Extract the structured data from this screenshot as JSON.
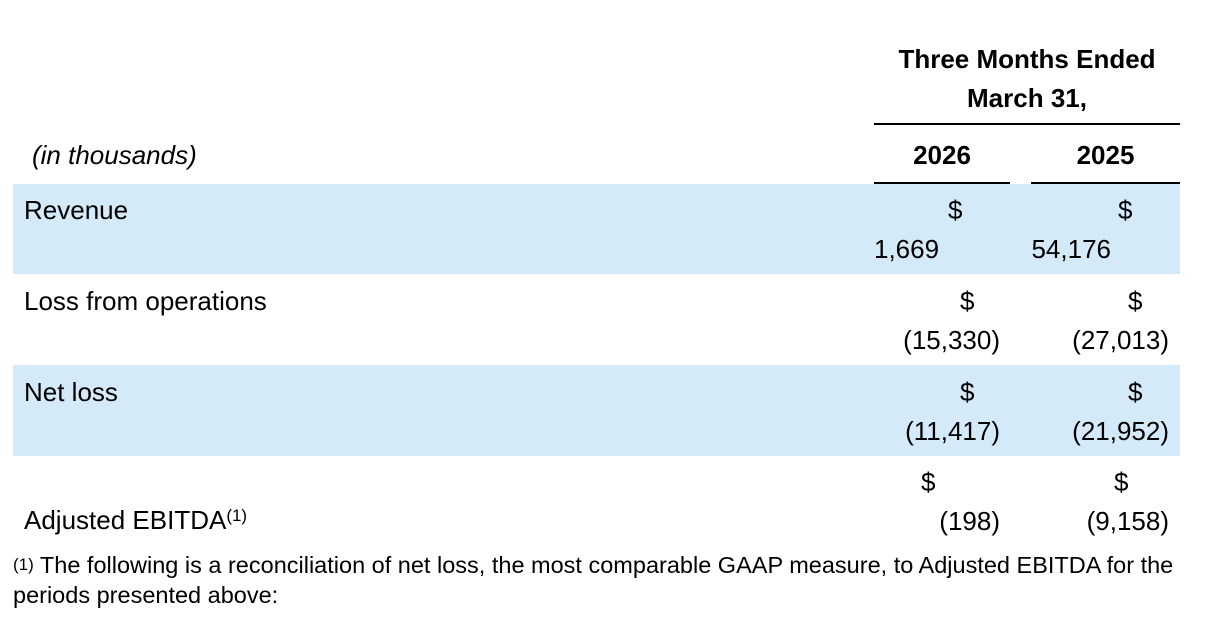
{
  "header": {
    "period_line1": "Three Months Ended",
    "period_line2": "March 31,",
    "units": "(in thousands)",
    "years": [
      "2026",
      "2025"
    ]
  },
  "rows": [
    {
      "label": "Revenue",
      "currency": "$",
      "values": [
        "1,669",
        "54,176"
      ],
      "shaded": true
    },
    {
      "label": "Loss from operations",
      "currency": "$",
      "values": [
        "(15,330)",
        "(27,013)"
      ],
      "shaded": false
    },
    {
      "label": "Net loss",
      "currency": "$",
      "values": [
        "(11,417)",
        "(21,952)"
      ],
      "shaded": true
    },
    {
      "label": "Adjusted EBITDA",
      "footnote_ref": "(1)",
      "currency": "$",
      "values": [
        "(198)",
        "(9,158)"
      ],
      "shaded": false
    }
  ],
  "footnote": {
    "marker": "(1)",
    "text": "The following is a reconciliation of net loss, the most comparable GAAP measure, to Adjusted EBITDA for the periods presented above:"
  },
  "colors": {
    "band": "#d5eaf9",
    "text": "#000000"
  }
}
